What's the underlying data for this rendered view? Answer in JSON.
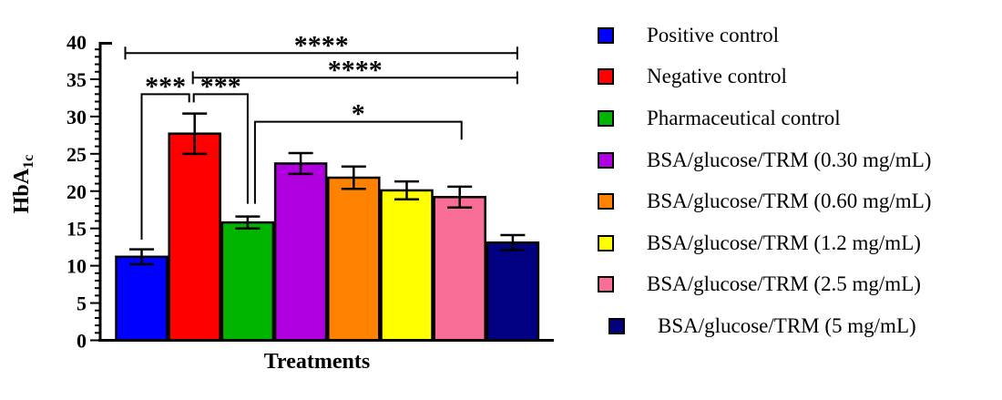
{
  "chart_data": {
    "type": "bar",
    "title": "",
    "xlabel": "Treatments",
    "ylabel_base": "HbA",
    "ylabel_sub": "1c",
    "ylim": [
      0,
      40
    ],
    "ytick_major_step": 5,
    "ytick_minor_step": 1,
    "ytick_labels": [
      "0",
      "5",
      "10",
      "15",
      "20",
      "25",
      "30",
      "35",
      "40"
    ],
    "grid": false,
    "legend_position": "right",
    "categories": [
      "Positive control",
      "Negative control",
      "Pharmaceutical control",
      "BSA/glucose/TRM (0.30 mg/mL)",
      "BSA/glucose/TRM (0.60 mg/mL)",
      "BSA/glucose/TRM (1.2 mg/mL)",
      "BSA/glucose/TRM (2.5 mg/mL)",
      "BSA/glucose/TRM (5 mg/mL)"
    ],
    "values": [
      11.2,
      27.7,
      15.8,
      23.7,
      21.8,
      20.1,
      19.2,
      13.1
    ],
    "errors": [
      1.0,
      2.7,
      0.8,
      1.4,
      1.5,
      1.2,
      1.4,
      1.0
    ],
    "colors": [
      "#0000FF",
      "#FF0000",
      "#00B400",
      "#B000E0",
      "#FF8300",
      "#FFFF00",
      "#F96E96",
      "#000080"
    ],
    "significance": [
      {
        "label": "****",
        "from": 0,
        "to": 7,
        "level": 38.5,
        "style": "caps",
        "x1_off": -18,
        "x2_off": 5
      },
      {
        "label": "****",
        "from": 1,
        "to": 7,
        "level": 35.2,
        "style": "caps",
        "x1_off": -2,
        "x2_off": 5
      },
      {
        "label": "***",
        "from": 0,
        "to": 1,
        "level": 33.0,
        "style": "bracket",
        "x1_off": 0,
        "x2_off": -6,
        "drop1": 13.5,
        "drop2": 31.9
      },
      {
        "label": "***",
        "from": 1,
        "to": 2,
        "level": 33.0,
        "style": "bracket",
        "x1_off": -1,
        "x2_off": 0,
        "drop1": 31.9,
        "drop2": 18.3
      },
      {
        "label": "*",
        "from": 2,
        "to": 6,
        "level": 29.3,
        "style": "bracket",
        "x1_off": 8,
        "x2_off": 2,
        "drop1": 18.3,
        "drop2": 26.9
      }
    ]
  },
  "legend": {
    "items": [
      {
        "label": "Positive control",
        "color": "#0000FF"
      },
      {
        "label": "Negative control",
        "color": "#FF0000"
      },
      {
        "label": "Pharmaceutical control",
        "color": "#00B400"
      },
      {
        "label": "BSA/glucose/TRM (0.30 mg/mL)",
        "color": "#B000E0"
      },
      {
        "label": "BSA/glucose/TRM (0.60 mg/mL)",
        "color": "#FF8300"
      },
      {
        "label": "BSA/glucose/TRM (1.2 mg/mL)",
        "color": "#FFFF00"
      },
      {
        "label": "BSA/glucose/TRM (2.5 mg/mL)",
        "color": "#F96E96"
      },
      {
        "label": "BSA/glucose/TRM (5 mg/mL)",
        "color": "#000080"
      }
    ]
  }
}
